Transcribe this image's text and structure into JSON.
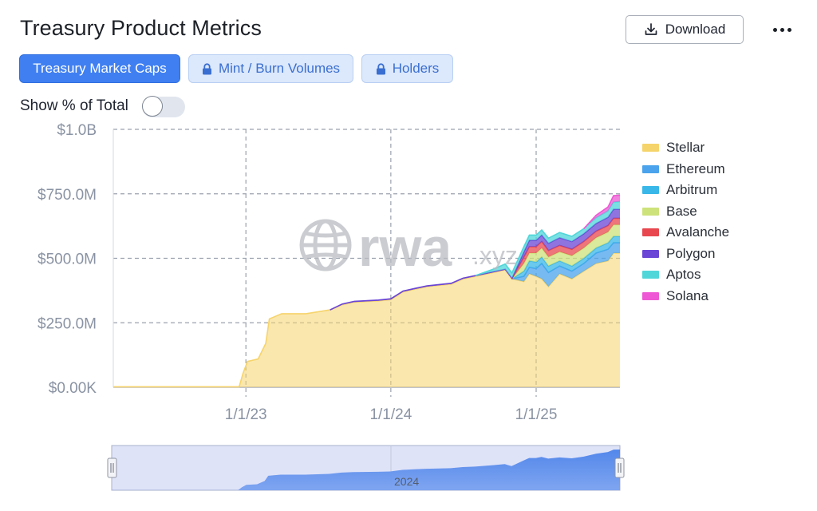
{
  "page": {
    "title": "Treasury Product Metrics",
    "download_label": "Download",
    "more_icon": "more-horizontal-icon"
  },
  "tabs": [
    {
      "label": "Treasury Market Caps",
      "active": true,
      "locked": false
    },
    {
      "label": "Mint / Burn Volumes",
      "active": false,
      "locked": true
    },
    {
      "label": "Holders",
      "active": false,
      "locked": true
    }
  ],
  "toggle": {
    "label": "Show % of Total",
    "on": false
  },
  "watermark": {
    "main": "rwa",
    "suffix": ".xyz"
  },
  "navigator": {
    "label": "2024"
  },
  "colors": {
    "accent": "#3f7ff2",
    "Stellar": "#f6d46c",
    "Ethereum": "#4aa3ec",
    "Arbitrum": "#39b7e8",
    "Base": "#cde27a",
    "Avalanche": "#e8474f",
    "Polygon": "#6a45d6",
    "Aptos": "#4fd6d9",
    "Solana": "#ee58d4"
  },
  "chart_data": {
    "type": "area",
    "stacked": true,
    "x_ticks": [
      "1/1/23",
      "1/1/24",
      "1/1/25"
    ],
    "y_ticks": [
      "$0.00K",
      "$250.0M",
      "$500.0M",
      "$750.0M",
      "$1.0B"
    ],
    "ylim": [
      0,
      1000
    ],
    "xlim": [
      "2022-02-01",
      "2025-07-31"
    ],
    "grid": true,
    "legend_position": "right",
    "x": [
      "2022-02-01",
      "2022-12-15",
      "2022-12-25",
      "2023-01-05",
      "2023-02-01",
      "2023-02-20",
      "2023-03-01",
      "2023-04-01",
      "2023-06-01",
      "2023-08-01",
      "2023-09-01",
      "2023-10-01",
      "2023-12-01",
      "2024-01-01",
      "2024-02-01",
      "2024-03-01",
      "2024-04-01",
      "2024-06-01",
      "2024-07-01",
      "2024-08-01",
      "2024-09-15",
      "2024-10-15",
      "2024-11-01",
      "2024-12-01",
      "2024-12-15",
      "2025-01-01",
      "2025-01-15",
      "2025-02-01",
      "2025-03-01",
      "2025-04-01",
      "2025-05-01",
      "2025-06-01",
      "2025-07-01",
      "2025-07-15",
      "2025-07-31"
    ],
    "series": [
      {
        "name": "Stellar",
        "values": [
          2,
          2,
          55,
          100,
          110,
          170,
          265,
          285,
          285,
          300,
          320,
          330,
          335,
          340,
          370,
          380,
          390,
          400,
          420,
          430,
          445,
          455,
          420,
          410,
          440,
          430,
          420,
          390,
          440,
          420,
          450,
          480,
          490,
          520,
          520
        ]
      },
      {
        "name": "Ethereum",
        "values": [
          0,
          0,
          0,
          0,
          0,
          0,
          0,
          0,
          0,
          0,
          0,
          0,
          0,
          0,
          0,
          0,
          0,
          0,
          0,
          0,
          0,
          0,
          0,
          20,
          25,
          30,
          60,
          55,
          30,
          30,
          30,
          40,
          45,
          40,
          40
        ]
      },
      {
        "name": "Arbitrum",
        "values": [
          0,
          0,
          0,
          0,
          0,
          0,
          0,
          0,
          0,
          0,
          0,
          0,
          0,
          0,
          0,
          0,
          0,
          0,
          0,
          0,
          0,
          0,
          0,
          20,
          25,
          25,
          25,
          25,
          20,
          20,
          20,
          20,
          25,
          25,
          25
        ]
      },
      {
        "name": "Base",
        "values": [
          0,
          0,
          0,
          0,
          0,
          0,
          0,
          0,
          0,
          0,
          0,
          0,
          0,
          0,
          0,
          0,
          0,
          0,
          0,
          0,
          0,
          0,
          0,
          30,
          30,
          35,
          35,
          35,
          35,
          40,
          40,
          40,
          42,
          45,
          45
        ]
      },
      {
        "name": "Avalanche",
        "values": [
          0,
          0,
          0,
          0,
          0,
          0,
          0,
          0,
          0,
          0,
          0,
          0,
          0,
          0,
          0,
          0,
          0,
          0,
          0,
          0,
          0,
          0,
          0,
          25,
          25,
          25,
          25,
          25,
          25,
          25,
          25,
          25,
          25,
          25,
          25
        ]
      },
      {
        "name": "Polygon",
        "values": [
          0,
          0,
          0,
          0,
          0,
          0,
          0,
          0,
          0,
          0,
          3,
          3,
          3,
          3,
          3,
          3,
          3,
          3,
          3,
          3,
          3,
          3,
          3,
          20,
          25,
          25,
          25,
          28,
          30,
          30,
          30,
          30,
          32,
          35,
          35
        ]
      },
      {
        "name": "Aptos",
        "values": [
          0,
          0,
          0,
          0,
          0,
          0,
          0,
          0,
          0,
          0,
          0,
          0,
          0,
          0,
          0,
          0,
          0,
          0,
          0,
          0,
          10,
          20,
          20,
          20,
          20,
          20,
          20,
          20,
          20,
          20,
          20,
          22,
          25,
          28,
          30
        ]
      },
      {
        "name": "Solana",
        "values": [
          0,
          0,
          0,
          0,
          0,
          0,
          0,
          0,
          0,
          0,
          0,
          0,
          0,
          0,
          0,
          0,
          0,
          0,
          0,
          0,
          0,
          0,
          0,
          0,
          0,
          0,
          0,
          0,
          0,
          0,
          0,
          10,
          15,
          25,
          25
        ]
      }
    ]
  }
}
